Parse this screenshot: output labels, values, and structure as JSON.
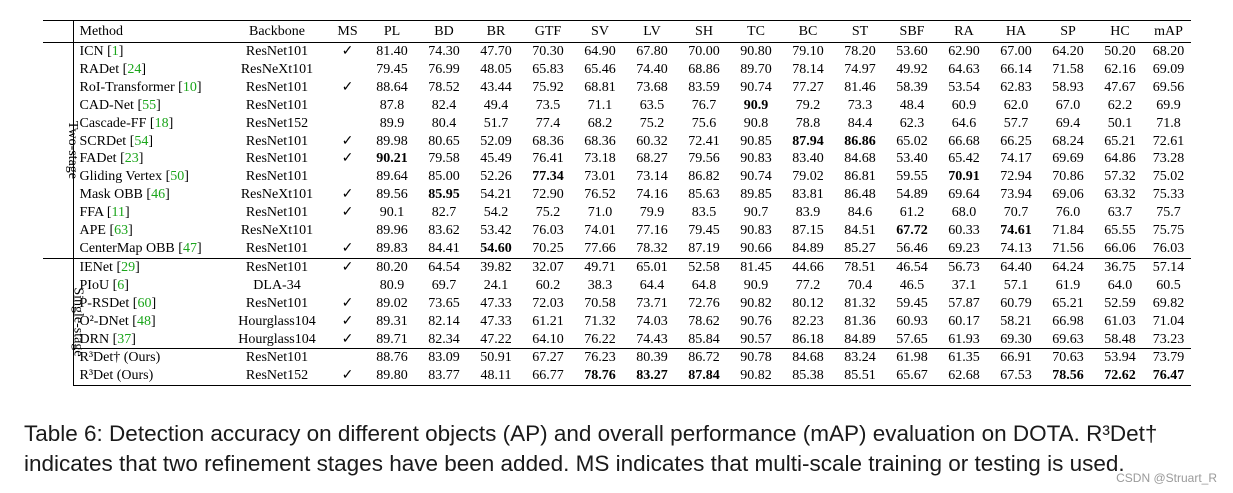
{
  "table": {
    "headers": [
      "Method",
      "Backbone",
      "MS",
      "PL",
      "BD",
      "BR",
      "GTF",
      "SV",
      "LV",
      "SH",
      "TC",
      "BC",
      "ST",
      "SBF",
      "RA",
      "HA",
      "SP",
      "HC",
      "mAP"
    ],
    "groups": [
      {
        "label": "Two-stage",
        "rows": [
          {
            "method": "ICN",
            "cite": "1",
            "backbone": "ResNet101",
            "ms": "✓",
            "values": [
              "81.40",
              "74.30",
              "47.70",
              "70.30",
              "64.90",
              "67.80",
              "70.00",
              "90.80",
              "79.10",
              "78.20",
              "53.60",
              "62.90",
              "67.00",
              "64.20",
              "50.20",
              "68.20"
            ]
          },
          {
            "method": "RADet",
            "cite": "24",
            "backbone": "ResNeXt101",
            "ms": "",
            "values": [
              "79.45",
              "76.99",
              "48.05",
              "65.83",
              "65.46",
              "74.40",
              "68.86",
              "89.70",
              "78.14",
              "74.97",
              "49.92",
              "64.63",
              "66.14",
              "71.58",
              "62.16",
              "69.09"
            ]
          },
          {
            "method": "RoI-Transformer",
            "cite": "10",
            "backbone": "ResNet101",
            "ms": "✓",
            "values": [
              "88.64",
              "78.52",
              "43.44",
              "75.92",
              "68.81",
              "73.68",
              "83.59",
              "90.74",
              "77.27",
              "81.46",
              "58.39",
              "53.54",
              "62.83",
              "58.93",
              "47.67",
              "69.56"
            ]
          },
          {
            "method": "CAD-Net",
            "cite": "55",
            "backbone": "ResNet101",
            "ms": "",
            "values": [
              "87.8",
              "82.4",
              "49.4",
              "73.5",
              "71.1",
              "63.5",
              "76.7",
              "90.9",
              "79.2",
              "73.3",
              "48.4",
              "60.9",
              "62.0",
              "67.0",
              "62.2",
              "69.9"
            ]
          },
          {
            "method": "Cascade-FF",
            "cite": "18",
            "backbone": "ResNet152",
            "ms": "",
            "values": [
              "89.9",
              "80.4",
              "51.7",
              "77.4",
              "68.2",
              "75.2",
              "75.6",
              "90.8",
              "78.8",
              "84.4",
              "62.3",
              "64.6",
              "57.7",
              "69.4",
              "50.1",
              "71.8"
            ]
          },
          {
            "method": "SCRDet",
            "cite": "54",
            "backbone": "ResNet101",
            "ms": "✓",
            "values": [
              "89.98",
              "80.65",
              "52.09",
              "68.36",
              "68.36",
              "60.32",
              "72.41",
              "90.85",
              "87.94",
              "86.86",
              "65.02",
              "66.68",
              "66.25",
              "68.24",
              "65.21",
              "72.61"
            ]
          },
          {
            "method": "FADet",
            "cite": "23",
            "backbone": "ResNet101",
            "ms": "✓",
            "values": [
              "90.21",
              "79.58",
              "45.49",
              "76.41",
              "73.18",
              "68.27",
              "79.56",
              "90.83",
              "83.40",
              "84.68",
              "53.40",
              "65.42",
              "74.17",
              "69.69",
              "64.86",
              "73.28"
            ]
          },
          {
            "method": "Gliding Vertex",
            "cite": "50",
            "backbone": "ResNet101",
            "ms": "",
            "values": [
              "89.64",
              "85.00",
              "52.26",
              "77.34",
              "73.01",
              "73.14",
              "86.82",
              "90.74",
              "79.02",
              "86.81",
              "59.55",
              "70.91",
              "72.94",
              "70.86",
              "57.32",
              "75.02"
            ]
          },
          {
            "method": "Mask OBB",
            "cite": "46",
            "backbone": "ResNeXt101",
            "ms": "✓",
            "values": [
              "89.56",
              "85.95",
              "54.21",
              "72.90",
              "76.52",
              "74.16",
              "85.63",
              "89.85",
              "83.81",
              "86.48",
              "54.89",
              "69.64",
              "73.94",
              "69.06",
              "63.32",
              "75.33"
            ]
          },
          {
            "method": "FFA",
            "cite": "11",
            "backbone": "ResNet101",
            "ms": "✓",
            "values": [
              "90.1",
              "82.7",
              "54.2",
              "75.2",
              "71.0",
              "79.9",
              "83.5",
              "90.7",
              "83.9",
              "84.6",
              "61.2",
              "68.0",
              "70.7",
              "76.0",
              "63.7",
              "75.7"
            ]
          },
          {
            "method": "APE",
            "cite": "63",
            "backbone": "ResNeXt101",
            "ms": "",
            "values": [
              "89.96",
              "83.62",
              "53.42",
              "76.03",
              "74.01",
              "77.16",
              "79.45",
              "90.83",
              "87.15",
              "84.51",
              "67.72",
              "60.33",
              "74.61",
              "71.84",
              "65.55",
              "75.75"
            ]
          },
          {
            "method": "CenterMap OBB",
            "cite": "47",
            "backbone": "ResNet101",
            "ms": "✓",
            "values": [
              "89.83",
              "84.41",
              "54.60",
              "70.25",
              "77.66",
              "78.32",
              "87.19",
              "90.66",
              "84.89",
              "85.27",
              "56.46",
              "69.23",
              "74.13",
              "71.56",
              "66.06",
              "76.03"
            ]
          }
        ]
      },
      {
        "label": "Single-stage",
        "rows": [
          {
            "method": "IENet",
            "cite": "29",
            "backbone": "ResNet101",
            "ms": "✓",
            "values": [
              "80.20",
              "64.54",
              "39.82",
              "32.07",
              "49.71",
              "65.01",
              "52.58",
              "81.45",
              "44.66",
              "78.51",
              "46.54",
              "56.73",
              "64.40",
              "64.24",
              "36.75",
              "57.14"
            ]
          },
          {
            "method": "PIoU",
            "cite": "6",
            "backbone": "DLA-34",
            "ms": "",
            "values": [
              "80.9",
              "69.7",
              "24.1",
              "60.2",
              "38.3",
              "64.4",
              "64.8",
              "90.9",
              "77.2",
              "70.4",
              "46.5",
              "37.1",
              "57.1",
              "61.9",
              "64.0",
              "60.5"
            ]
          },
          {
            "method": "P-RSDet",
            "cite": "60",
            "backbone": "ResNet101",
            "ms": "✓",
            "values": [
              "89.02",
              "73.65",
              "47.33",
              "72.03",
              "70.58",
              "73.71",
              "72.76",
              "90.82",
              "80.12",
              "81.32",
              "59.45",
              "57.87",
              "60.79",
              "65.21",
              "52.59",
              "69.82"
            ]
          },
          {
            "method": "O²-DNet",
            "cite": "48",
            "backbone": "Hourglass104",
            "ms": "✓",
            "values": [
              "89.31",
              "82.14",
              "47.33",
              "61.21",
              "71.32",
              "74.03",
              "78.62",
              "90.76",
              "82.23",
              "81.36",
              "60.93",
              "60.17",
              "58.21",
              "66.98",
              "61.03",
              "71.04"
            ]
          },
          {
            "method": "DRN",
            "cite": "37",
            "backbone": "Hourglass104",
            "ms": "✓",
            "values": [
              "89.71",
              "82.34",
              "47.22",
              "64.10",
              "76.22",
              "74.43",
              "85.84",
              "90.57",
              "86.18",
              "84.89",
              "57.65",
              "61.93",
              "69.30",
              "69.63",
              "58.48",
              "73.23"
            ]
          },
          {
            "method": "R³Det† (Ours)",
            "cite": "",
            "backbone": "ResNet101",
            "ms": "",
            "values": [
              "88.76",
              "83.09",
              "50.91",
              "67.27",
              "76.23",
              "80.39",
              "86.72",
              "90.78",
              "84.68",
              "83.24",
              "61.98",
              "61.35",
              "66.91",
              "70.63",
              "53.94",
              "73.79"
            ]
          },
          {
            "method": "R³Det (Ours)",
            "cite": "",
            "backbone": "ResNet152",
            "ms": "✓",
            "values": [
              "89.80",
              "83.77",
              "48.11",
              "66.77",
              "78.76",
              "83.27",
              "87.84",
              "90.82",
              "85.38",
              "85.51",
              "65.67",
              "62.68",
              "67.53",
              "78.56",
              "72.62",
              "76.47"
            ]
          }
        ]
      }
    ],
    "bold_cells": [
      [
        0,
        6,
        0
      ],
      [
        0,
        3,
        7
      ],
      [
        0,
        5,
        8
      ],
      [
        0,
        5,
        9
      ],
      [
        0,
        7,
        3
      ],
      [
        0,
        7,
        11
      ],
      [
        0,
        8,
        1
      ],
      [
        0,
        10,
        10
      ],
      [
        0,
        10,
        12
      ],
      [
        0,
        11,
        2
      ],
      [
        1,
        6,
        4
      ],
      [
        1,
        6,
        5
      ],
      [
        1,
        6,
        6
      ],
      [
        1,
        6,
        13
      ],
      [
        1,
        6,
        14
      ],
      [
        1,
        6,
        15
      ]
    ]
  },
  "caption": {
    "line1": "Table 6: Detection accuracy on different objects (AP) and overall performance (mAP) evaluation on DOTA. R³Det† indicates that two refinement stages have been added. MS indicates that multi-scale training or testing is used."
  },
  "watermark": "CSDN @Struart_R",
  "colors": {
    "citation": "#1aa51a",
    "text": "#000000",
    "caption": "#1a1a1a",
    "watermark": "#9a9a9a"
  }
}
